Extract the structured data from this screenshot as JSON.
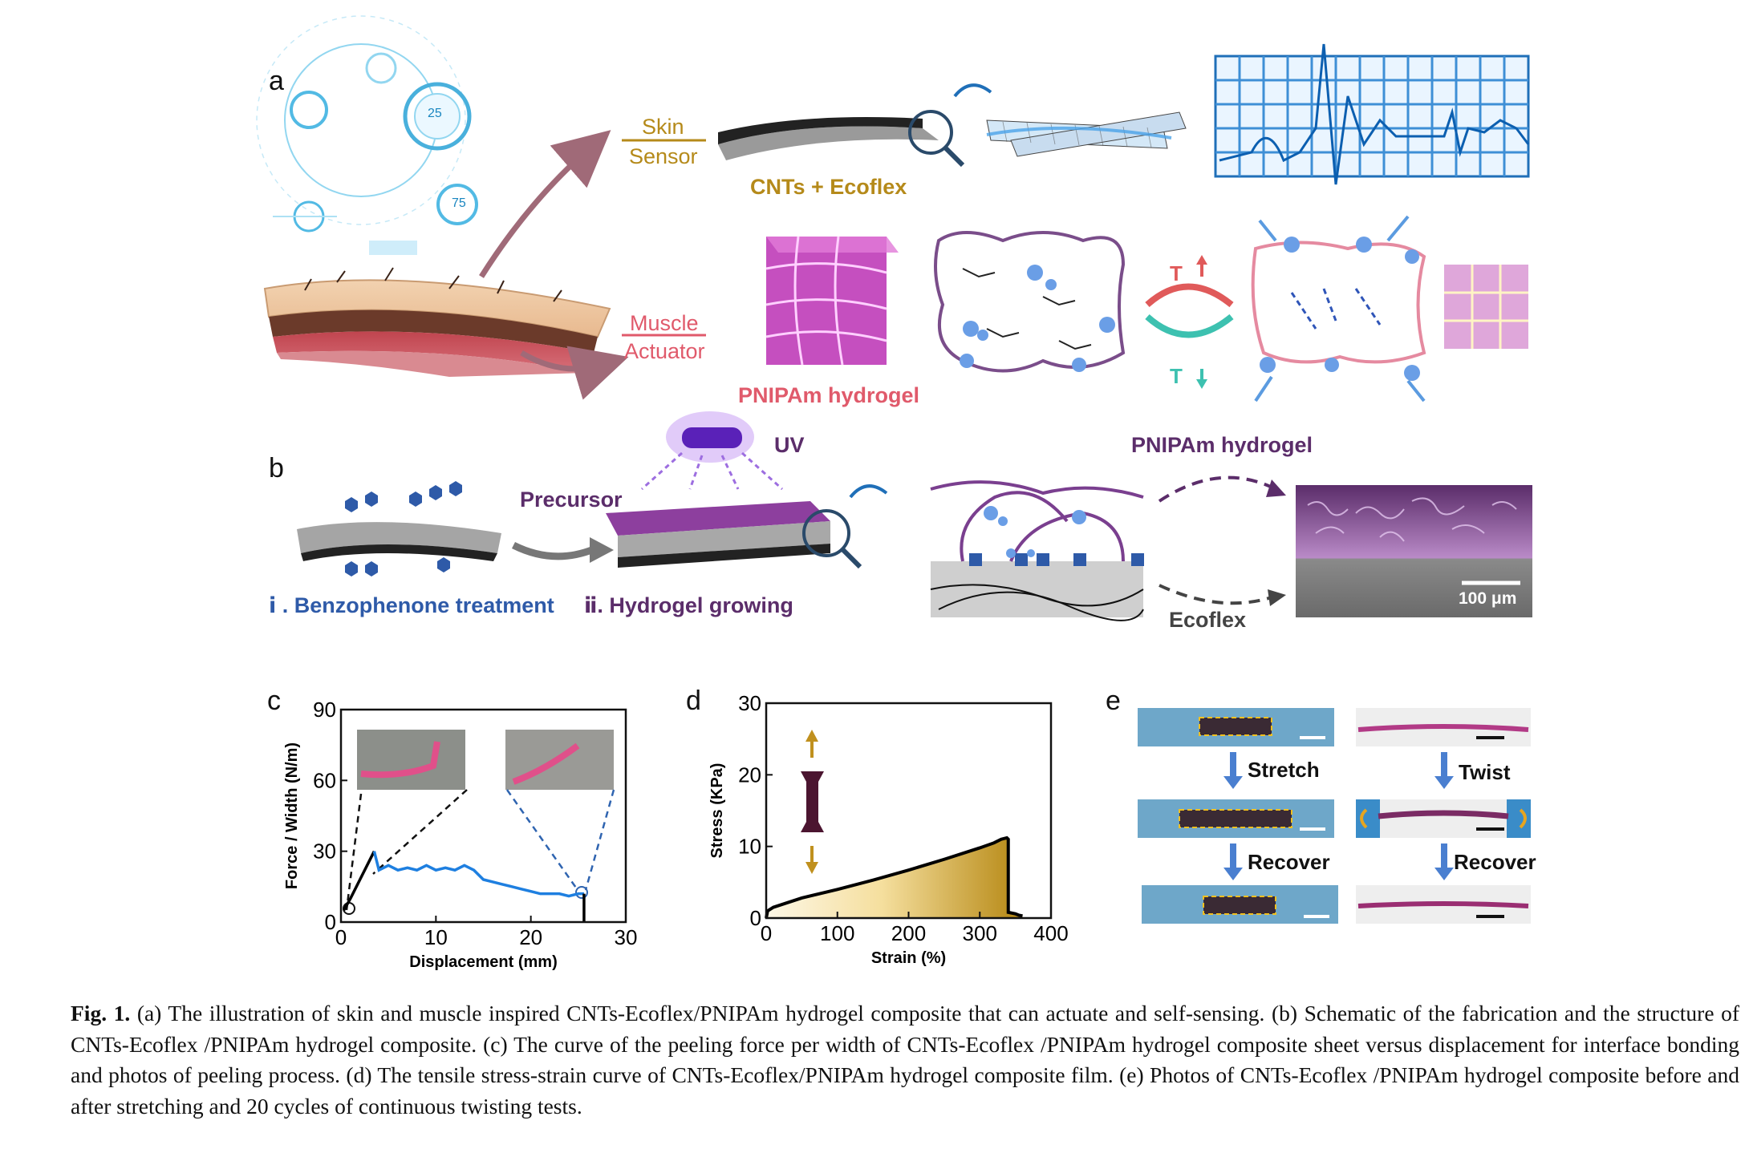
{
  "panel_a": {
    "letter": "a",
    "skin_label_1": "Skin",
    "skin_label_2": "Sensor",
    "muscle_label_1": "Muscle",
    "muscle_label_2": "Actuator",
    "cnts_ecoflex": "CNTs + Ecoflex",
    "pnipam_hydrogel": "PNIPAm hydrogel",
    "t_up": "T",
    "t_down": "T",
    "hud_values": [
      "25",
      "75"
    ]
  },
  "panel_b": {
    "letter": "b",
    "uv": "UV",
    "precursor": "Precursor",
    "pnipam_hydrogel": "PNIPAm hydrogel",
    "step_i": "ⅰ . Benzophenone treatment",
    "step_ii": "ⅱ. Hydrogel growing",
    "ecoflex": "Ecoflex",
    "scale_bar": "100 μm",
    "colors": {
      "hydrogel": "#7a3f8f",
      "benzophenone": "#2e5aa8",
      "ecoflex": "#555555"
    }
  },
  "panel_c": {
    "letter": "c",
    "chart_data": {
      "type": "line",
      "xlabel": "Displacement (mm)",
      "ylabel": "Force / Width (N/m)",
      "xlim": [
        0,
        30
      ],
      "ylim": [
        0,
        90
      ],
      "xticks": [
        "0",
        "10",
        "20",
        "30"
      ],
      "yticks": [
        "0",
        "30",
        "60",
        "90"
      ],
      "series": [
        {
          "color": "#000000",
          "x": [
            0.3,
            1.0,
            2.0,
            3.0,
            3.5
          ],
          "y": [
            5,
            10,
            18,
            26,
            30
          ]
        },
        {
          "color": "#1e7fe0",
          "x": [
            3.5,
            4,
            5,
            6,
            7,
            8,
            9,
            10,
            11,
            12,
            13,
            14,
            15,
            16,
            17,
            18,
            19,
            20,
            21,
            22,
            23,
            24,
            25,
            25.6
          ],
          "y": [
            30,
            22,
            24,
            22,
            23,
            22,
            24,
            22,
            23,
            22,
            24,
            22,
            18,
            17,
            16,
            15,
            14,
            13,
            12,
            12,
            12,
            11,
            12,
            12
          ]
        },
        {
          "color": "#000000",
          "x": [
            25.6,
            25.6
          ],
          "y": [
            12,
            0
          ]
        }
      ]
    }
  },
  "panel_d": {
    "letter": "d",
    "chart_data": {
      "type": "area",
      "xlabel": "Strain (%)",
      "ylabel": "Stress (KPa)",
      "xlim": [
        0,
        400
      ],
      "ylim": [
        0,
        30
      ],
      "xticks": [
        "0",
        "100",
        "200",
        "300",
        "400"
      ],
      "yticks": [
        "0",
        "10",
        "20",
        "30"
      ],
      "series": [
        {
          "color": "#000000",
          "x": [
            0,
            2,
            10,
            50,
            100,
            150,
            200,
            250,
            300,
            320,
            330,
            338,
            340,
            340,
            350,
            355,
            360
          ],
          "y": [
            0,
            1,
            1.5,
            2.8,
            4.0,
            5.3,
            6.7,
            8.2,
            9.8,
            10.5,
            11.0,
            11.2,
            11.0,
            0.8,
            0.6,
            0.4,
            0.3
          ]
        }
      ]
    }
  },
  "panel_e": {
    "letter": "e",
    "stretch": "Stretch",
    "twist": "Twist",
    "recover_1": "Recover",
    "recover_2": "Recover"
  },
  "caption": {
    "label": "Fig. 1.",
    "text": "(a) The illustration of skin and muscle inspired CNTs-Ecoflex/PNIPAm hydrogel composite that can actuate and self-sensing. (b) Schematic of the fabrication and the structure of CNTs-Ecoflex /PNIPAm hydrogel composite. (c) The curve of the peeling force per width of CNTs-Ecoflex /PNIPAm hydrogel composite sheet versus displacement for interface bonding and photos of peeling process. (d) The tensile stress-strain curve of CNTs-Ecoflex/PNIPAm hydrogel composite film. (e) Photos of CNTs-Ecoflex /PNIPAm hydrogel composite before and after stretching and 20 cycles of continuous twisting tests."
  }
}
